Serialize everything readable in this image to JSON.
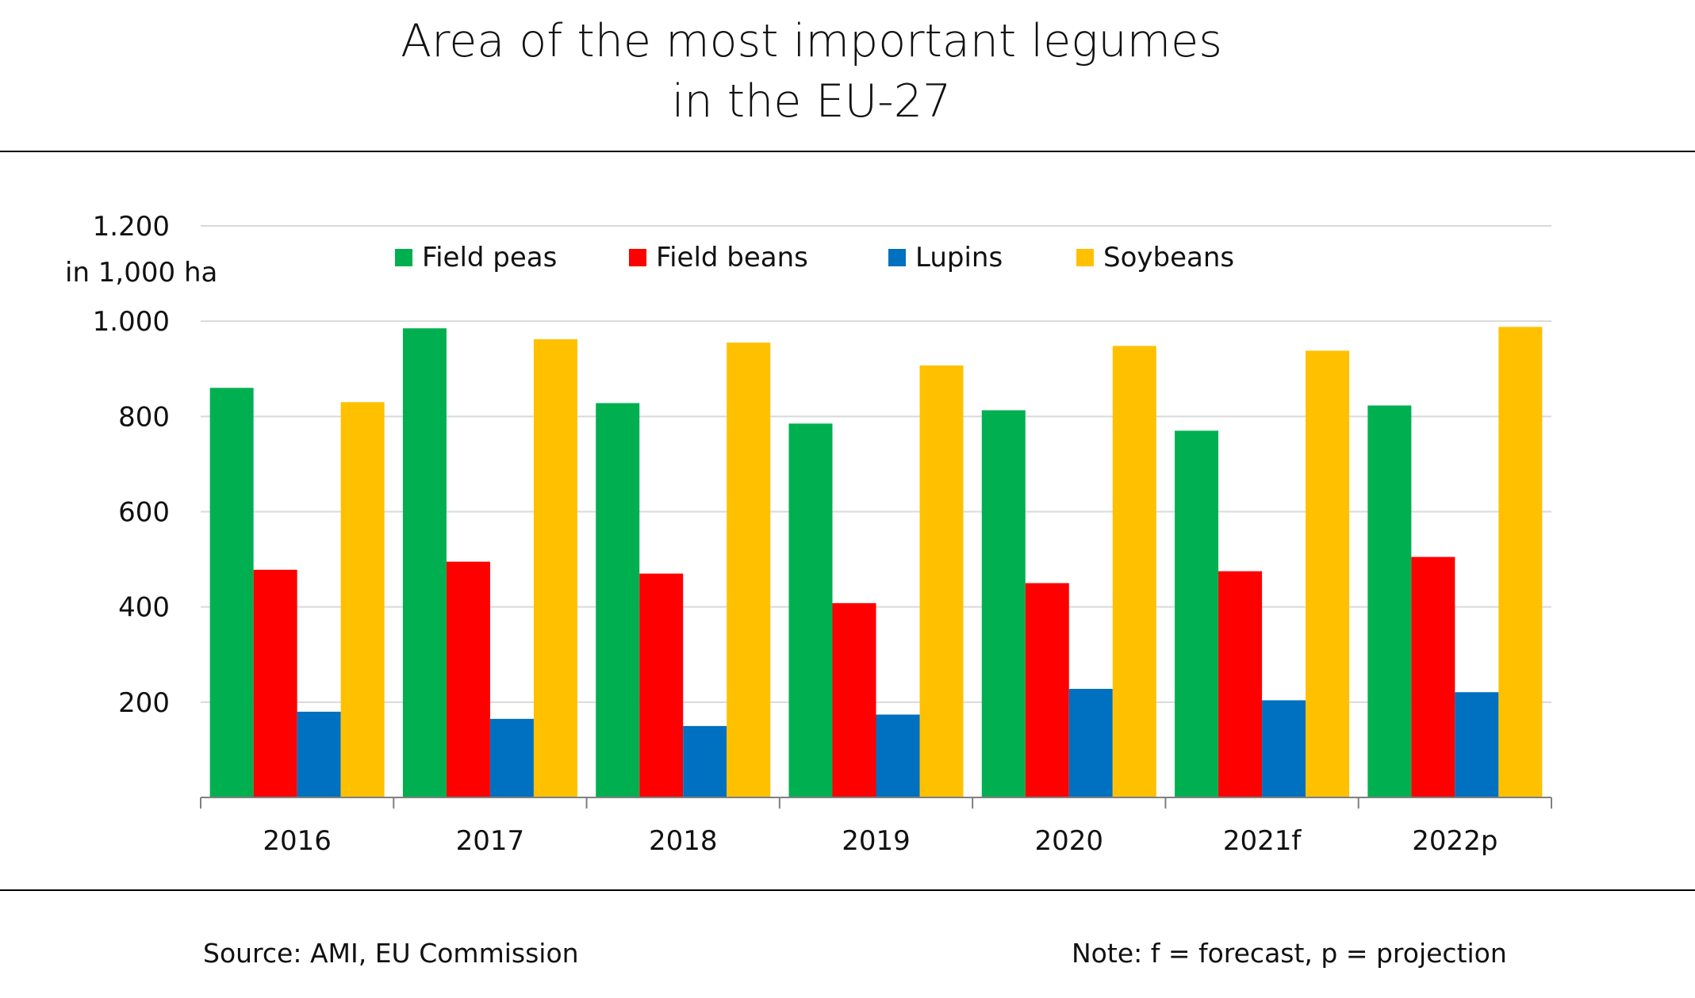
{
  "header": {
    "title_line1": "Area of the most important legumes",
    "title_line2": "in the EU-27"
  },
  "footer": {
    "source": "Source: AMI, EU Commission",
    "note": "Note: f = forecast, p = projection"
  },
  "chart_data": {
    "type": "bar",
    "title": "Area of the most important legumes in the EU-27",
    "ylabel": "in 1,000 ha",
    "xlabel": "",
    "ylim": [
      0,
      1200
    ],
    "yticks": [
      200,
      400,
      600,
      800,
      1000,
      1200
    ],
    "ytick_labels": [
      "200",
      "400",
      "600",
      "800",
      "1.000",
      "1.200"
    ],
    "grid": true,
    "legend_position": "top",
    "categories": [
      "2016",
      "2017",
      "2018",
      "2019",
      "2020",
      "2021f",
      "2022p"
    ],
    "series": [
      {
        "name": "Field peas",
        "color": "#00B050",
        "values": [
          860,
          985,
          828,
          785,
          813,
          770,
          823
        ]
      },
      {
        "name": "Field beans",
        "color": "#FF0000",
        "values": [
          478,
          495,
          470,
          408,
          450,
          475,
          505
        ]
      },
      {
        "name": "Lupins",
        "color": "#0070C0",
        "values": [
          180,
          165,
          150,
          174,
          228,
          204,
          221
        ]
      },
      {
        "name": "Soybeans",
        "color": "#FFC000",
        "values": [
          830,
          962,
          955,
          907,
          948,
          938,
          988
        ]
      }
    ]
  }
}
